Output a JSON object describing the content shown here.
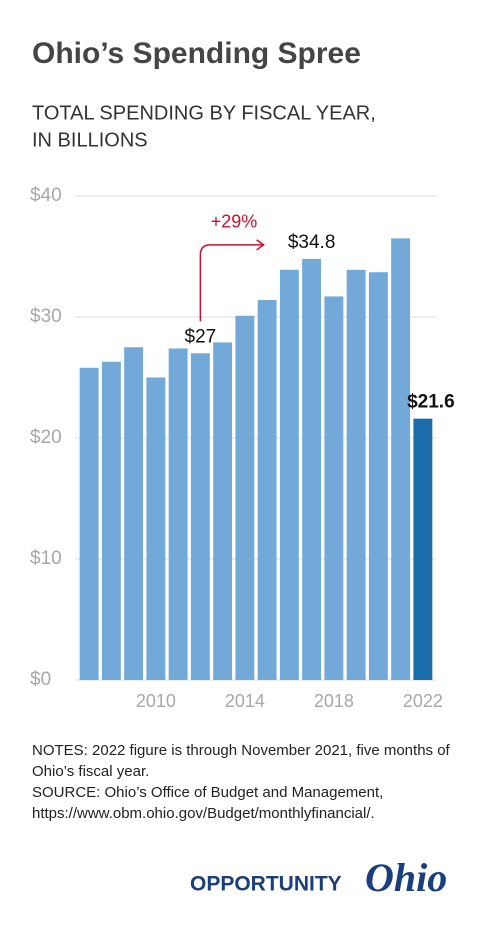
{
  "chart_data": {
    "type": "bar",
    "title": "Ohio’s Spending Spree",
    "subtitle": [
      "TOTAL SPENDING BY FISCAL YEAR,",
      "IN BILLIONS"
    ],
    "x": [
      2007,
      2008,
      2009,
      2010,
      2011,
      2012,
      2013,
      2014,
      2015,
      2016,
      2017,
      2018,
      2019,
      2020,
      2021,
      2022
    ],
    "values": [
      25.8,
      26.3,
      27.5,
      25.0,
      27.4,
      27,
      27.9,
      30.1,
      31.4,
      33.9,
      34.8,
      31.7,
      33.9,
      33.7,
      36.5,
      21.6
    ],
    "value_labels": [
      null,
      null,
      null,
      null,
      null,
      "$27",
      null,
      null,
      null,
      null,
      "$34.8",
      null,
      null,
      null,
      null,
      "$21.6"
    ],
    "colors": [
      "#72a9d8",
      "#72a9d8",
      "#72a9d8",
      "#72a9d8",
      "#72a9d8",
      "#72a9d8",
      "#72a9d8",
      "#72a9d8",
      "#72a9d8",
      "#72a9d8",
      "#72a9d8",
      "#72a9d8",
      "#72a9d8",
      "#72a9d8",
      "#72a9d8",
      "#1b6cab"
    ],
    "annotation": "+29%",
    "annotation_color": "#c8102e",
    "xlim": [
      2006.5,
      2022.5
    ],
    "xticks": [
      2010,
      2014,
      2018,
      2022
    ],
    "ylim": [
      0,
      40
    ],
    "yticks": [
      {
        "value": 0,
        "label": "$0"
      },
      {
        "value": 10,
        "label": "$10"
      },
      {
        "value": 20,
        "label": "$20"
      },
      {
        "value": 30,
        "label": "$30"
      },
      {
        "value": 40,
        "label": "$40"
      }
    ],
    "grid": true
  },
  "footer": {
    "notes": "NOTES: 2022 figure is through November 2021, five months of Ohio’s fiscal year.",
    "source": "SOURCE: Ohio’s Office of Budget and Management, https://www.obm.ohio.gov/Budget/monthlyfinancial/."
  },
  "logo": {
    "word": "OPPORTUNITY",
    "script": "Ohio"
  }
}
